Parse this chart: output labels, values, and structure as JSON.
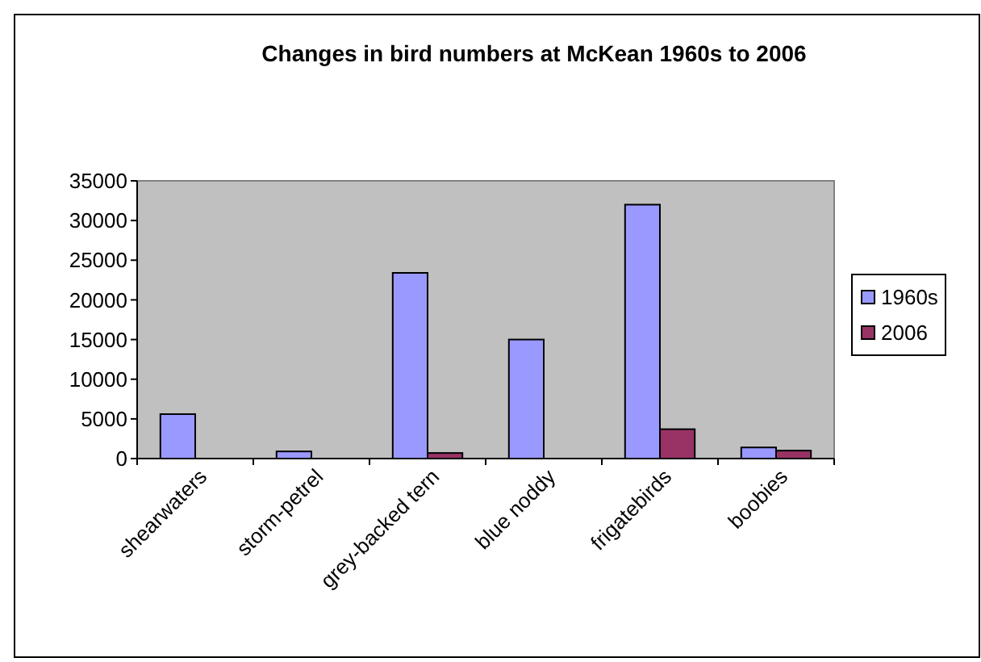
{
  "chart_data": {
    "type": "bar",
    "title": "Changes in bird numbers at McKean 1960s to 2006",
    "categories": [
      "shearwaters",
      "storm-petrel",
      "grey-backed tern",
      "blue noddy",
      "frigatebirds",
      "boobies"
    ],
    "series": [
      {
        "name": "1960s",
        "color": "#9999ff",
        "values": [
          5600,
          900,
          23400,
          15000,
          32000,
          1400
        ]
      },
      {
        "name": "2006",
        "color": "#993366",
        "values": [
          0,
          0,
          700,
          0,
          3700,
          1000
        ]
      }
    ],
    "ylim": [
      0,
      35000
    ],
    "yticks": [
      0,
      5000,
      10000,
      15000,
      20000,
      25000,
      30000,
      35000
    ],
    "grid": false,
    "legend": "right"
  }
}
